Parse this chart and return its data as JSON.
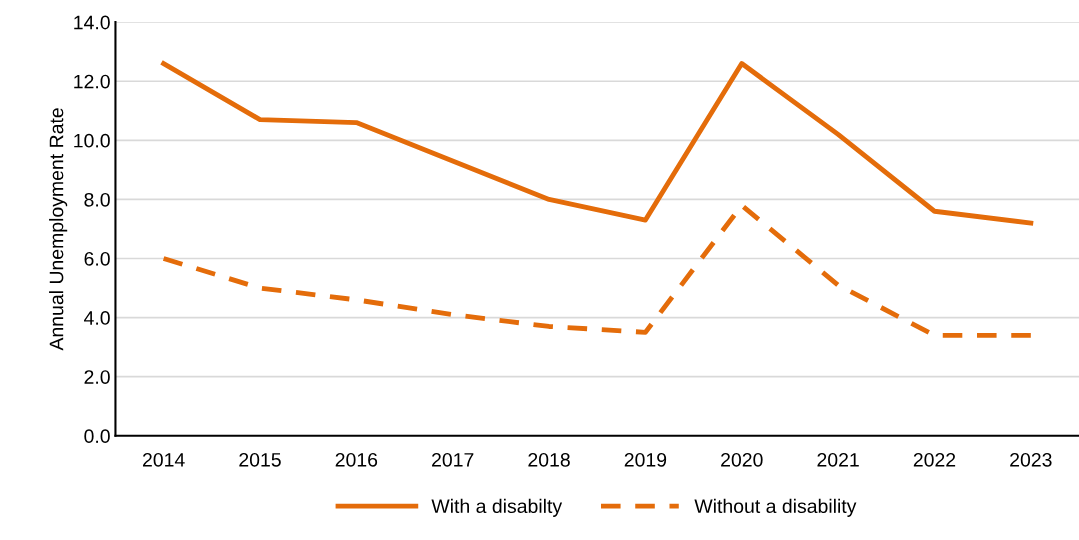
{
  "chart_data": {
    "type": "line",
    "ylabel": "Annual Unemployment Rate",
    "categories": [
      "2014",
      "2015",
      "2016",
      "2017",
      "2018",
      "2019",
      "2020",
      "2021",
      "2022",
      "2023"
    ],
    "series": [
      {
        "name": "With a disabilty",
        "color": "#e46c0a",
        "line_style": "solid",
        "values": [
          12.6,
          10.7,
          10.6,
          9.3,
          8.0,
          7.3,
          12.6,
          10.2,
          7.6,
          7.2
        ]
      },
      {
        "name": "Without a disability",
        "color": "#e46c0a",
        "line_style": "dashed",
        "values": [
          6.0,
          5.0,
          4.6,
          4.1,
          3.7,
          3.5,
          7.8,
          5.1,
          3.4,
          3.4
        ]
      }
    ],
    "ylim": [
      0,
      14
    ],
    "yticks": [
      {
        "value": 0,
        "label": "0.0"
      },
      {
        "value": 2,
        "label": "2.0"
      },
      {
        "value": 4,
        "label": "4.0"
      },
      {
        "value": 6,
        "label": "6.0"
      },
      {
        "value": 8,
        "label": "8.0"
      },
      {
        "value": 10,
        "label": "10.0"
      },
      {
        "value": 12,
        "label": "12.0"
      },
      {
        "value": 14,
        "label": "14.0"
      }
    ],
    "grid": "y",
    "legend": "bottom",
    "marker": "none"
  }
}
